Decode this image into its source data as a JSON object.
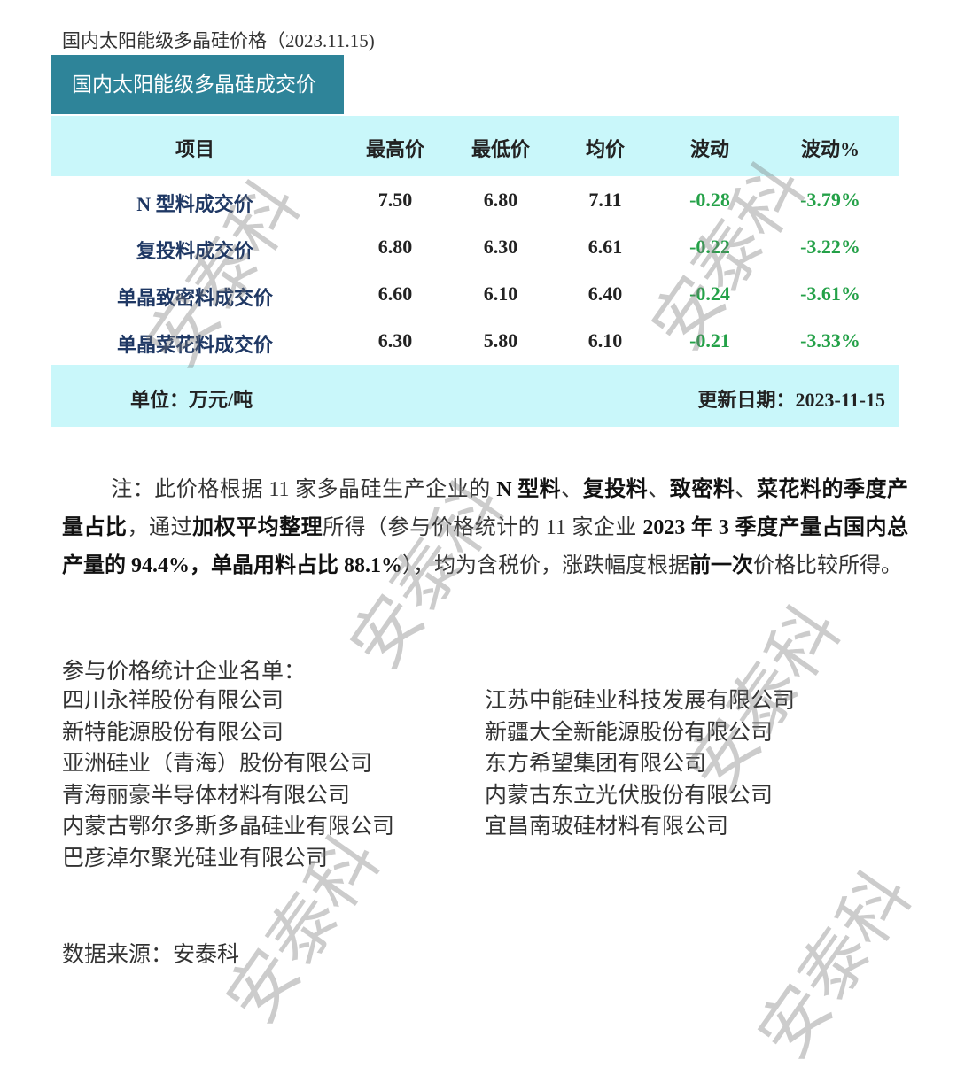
{
  "title": "国内太阳能级多晶硅价格（2023.11.15)",
  "table": {
    "tab_label": "国内太阳能级多晶硅成交价",
    "headers": [
      "项目",
      "最高价",
      "最低价",
      "均价",
      "波动",
      "波动%"
    ],
    "rows": [
      {
        "item": "N 型料成交价",
        "high": "7.50",
        "low": "6.80",
        "avg": "7.11",
        "change": "-0.28",
        "change_pct": "-3.79%"
      },
      {
        "item": "复投料成交价",
        "high": "6.80",
        "low": "6.30",
        "avg": "6.61",
        "change": "-0.22",
        "change_pct": "-3.22%"
      },
      {
        "item": "单晶致密料成交价",
        "high": "6.60",
        "low": "6.10",
        "avg": "6.40",
        "change": "-0.24",
        "change_pct": "-3.61%"
      },
      {
        "item": "单晶菜花料成交价",
        "high": "6.30",
        "low": "5.80",
        "avg": "6.10",
        "change": "-0.21",
        "change_pct": "-3.33%"
      }
    ],
    "unit": "单位：万元/吨",
    "update_date": "更新日期：2023-11-15"
  },
  "note": [
    {
      "t": "注：此价格根据 11 家多晶硅生产企业的 ",
      "b": false
    },
    {
      "t": "N 型料",
      "b": true
    },
    {
      "t": "、",
      "b": false
    },
    {
      "t": "复投料",
      "b": true
    },
    {
      "t": "、",
      "b": false
    },
    {
      "t": "致密料",
      "b": true
    },
    {
      "t": "、",
      "b": false
    },
    {
      "t": "菜花料的季度产量占比",
      "b": true
    },
    {
      "t": "，通过",
      "b": false
    },
    {
      "t": "加权平均整理",
      "b": true
    },
    {
      "t": "所得（参与价格统计的 11 家企业 ",
      "b": false
    },
    {
      "t": "2023 年 3 季度产量占国内总产量的 94.4%，单晶用料占比 88.1%",
      "b": true
    },
    {
      "t": "），均为含税价，涨跌幅度根据",
      "b": false
    },
    {
      "t": "前一次",
      "b": true
    },
    {
      "t": "价格比较所得。",
      "b": false
    }
  ],
  "companies_label": "参与价格统计企业名单：",
  "companies_left": [
    "四川永祥股份有限公司",
    "新特能源股份有限公司",
    "亚洲硅业（青海）股份有限公司",
    "青海丽豪半导体材料有限公司",
    "内蒙古鄂尔多斯多晶硅业有限公司",
    "巴彦淖尔聚光硅业有限公司"
  ],
  "companies_right": [
    "江苏中能硅业科技发展有限公司",
    "新疆大全新能源股份有限公司",
    "东方希望集团有限公司",
    "内蒙古东立光伏股份有限公司",
    "宜昌南玻硅材料有限公司"
  ],
  "source": "数据来源：安泰科",
  "watermark": "安泰科",
  "colors": {
    "tab": "#2e8499",
    "band": "#c9f7fa",
    "item_text": "#1f3864",
    "negative": "#24a148"
  }
}
